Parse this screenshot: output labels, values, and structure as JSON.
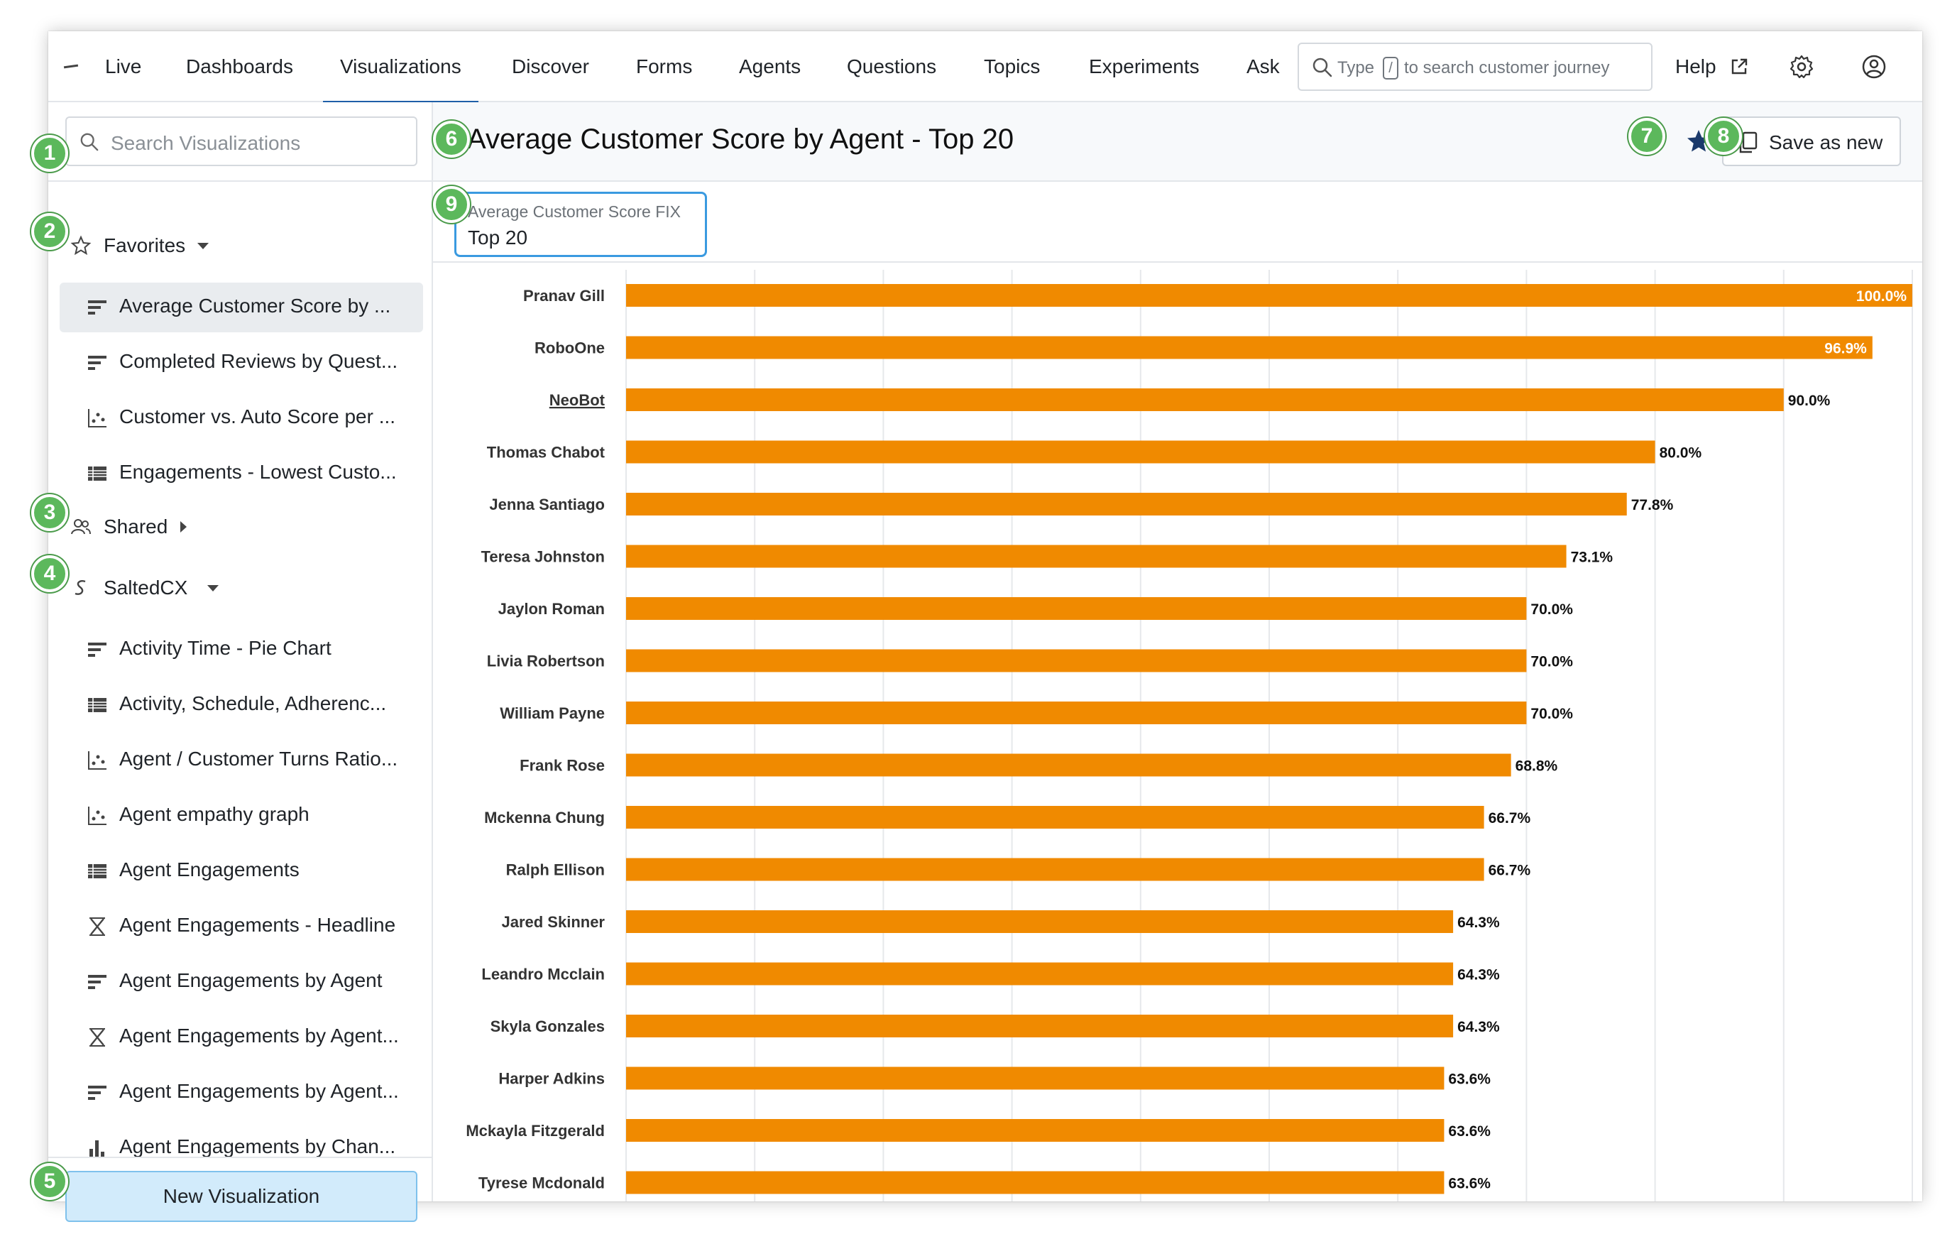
{
  "nav": {
    "items": [
      "Live",
      "Dashboards",
      "Visualizations",
      "Discover",
      "Forms",
      "Agents",
      "Questions",
      "Topics",
      "Experiments",
      "Ask"
    ],
    "active": "Visualizations",
    "search_prefix": "Type",
    "search_key": "/",
    "search_suffix": "to search customer journey",
    "help_label": "Help"
  },
  "sidebar": {
    "search_placeholder": "Search Visualizations",
    "favorites_label": "Favorites",
    "favorites": [
      {
        "label": "Average Customer Score by ...",
        "icon": "bar-chart-icon",
        "selected": true
      },
      {
        "label": "Completed Reviews by Quest...",
        "icon": "bar-chart-icon"
      },
      {
        "label": "Customer vs. Auto Score per ...",
        "icon": "scatter-chart-icon"
      },
      {
        "label": "Engagements - Lowest Custo...",
        "icon": "table-icon"
      }
    ],
    "shared_label": "Shared",
    "saltedcx_label": "SaltedCX",
    "saltedcx": [
      {
        "label": "Activity Time - Pie Chart",
        "icon": "bar-chart-icon"
      },
      {
        "label": "Activity, Schedule, Adherenc...",
        "icon": "table-icon"
      },
      {
        "label": "Agent / Customer Turns Ratio...",
        "icon": "scatter-chart-icon"
      },
      {
        "label": "Agent empathy graph",
        "icon": "scatter-chart-icon"
      },
      {
        "label": "Agent Engagements",
        "icon": "table-icon"
      },
      {
        "label": "Agent Engagements - Headline",
        "icon": "headline-icon"
      },
      {
        "label": "Agent Engagements by Agent",
        "icon": "bar-chart-icon"
      },
      {
        "label": "Agent Engagements by Agent...",
        "icon": "headline-icon"
      },
      {
        "label": "Agent Engagements by Agent...",
        "icon": "bar-chart-icon"
      },
      {
        "label": "Agent Engagements by Chan...",
        "icon": "column-chart-icon"
      }
    ],
    "new_button": "New Visualization"
  },
  "main": {
    "title": "Average Customer Score by Agent - Top 20",
    "save_label": "Save as new",
    "filter_label": "Average Customer Score FIX",
    "filter_value": "Top 20"
  },
  "badges": [
    "1",
    "2",
    "3",
    "4",
    "5",
    "6",
    "7",
    "8",
    "9"
  ],
  "colors": {
    "bar": "#f08a00",
    "accent": "#1f5fa8",
    "badge": "#5cb85c",
    "star": "#1b3a6b"
  },
  "chart_data": {
    "type": "bar",
    "orientation": "horizontal",
    "categories": [
      "Pranav Gill",
      "RoboOne",
      "NeoBot",
      "Thomas Chabot",
      "Jenna Santiago",
      "Teresa Johnston",
      "Jaylon Roman",
      "Livia Robertson",
      "William Payne",
      "Frank Rose",
      "Mckenna Chung",
      "Ralph Ellison",
      "Jared Skinner",
      "Leandro Mcclain",
      "Skyla Gonzales",
      "Harper Adkins",
      "Mckayla Fitzgerald",
      "Tyrese Mcdonald"
    ],
    "values": [
      100.0,
      96.9,
      90.0,
      80.0,
      77.8,
      73.1,
      70.0,
      70.0,
      70.0,
      68.8,
      66.7,
      66.7,
      64.3,
      64.3,
      64.3,
      63.6,
      63.6,
      63.6
    ],
    "labels": [
      "100.0%",
      "96.9%",
      "90.0%",
      "80.0%",
      "77.8%",
      "73.1%",
      "70.0%",
      "70.0%",
      "70.0%",
      "68.8%",
      "66.7%",
      "66.7%",
      "64.3%",
      "64.3%",
      "64.3%",
      "63.6%",
      "63.6%",
      "63.6%"
    ],
    "xlim": [
      0,
      100
    ],
    "grid": true,
    "underlined_category": "NeoBot"
  }
}
